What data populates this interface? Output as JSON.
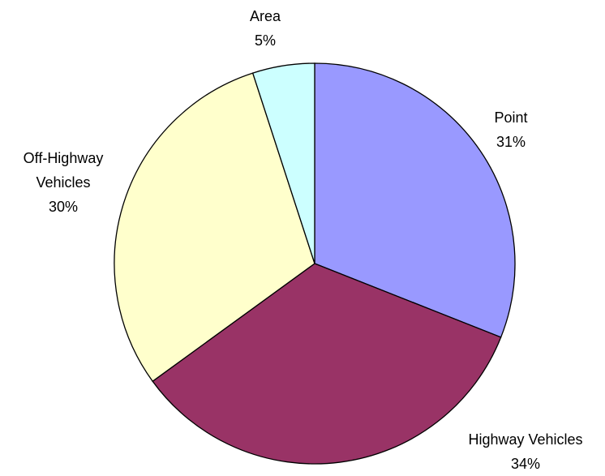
{
  "chart_data": {
    "type": "pie",
    "categories": [
      "Point",
      "Highway Vehicles",
      "Off-Highway Vehicles",
      "Area"
    ],
    "values": [
      31,
      34,
      30,
      5
    ],
    "value_labels": [
      "31%",
      "34%",
      "30%",
      "5%"
    ],
    "colors": [
      "#9999ff",
      "#993366",
      "#ffffcc",
      "#ccffff"
    ]
  }
}
